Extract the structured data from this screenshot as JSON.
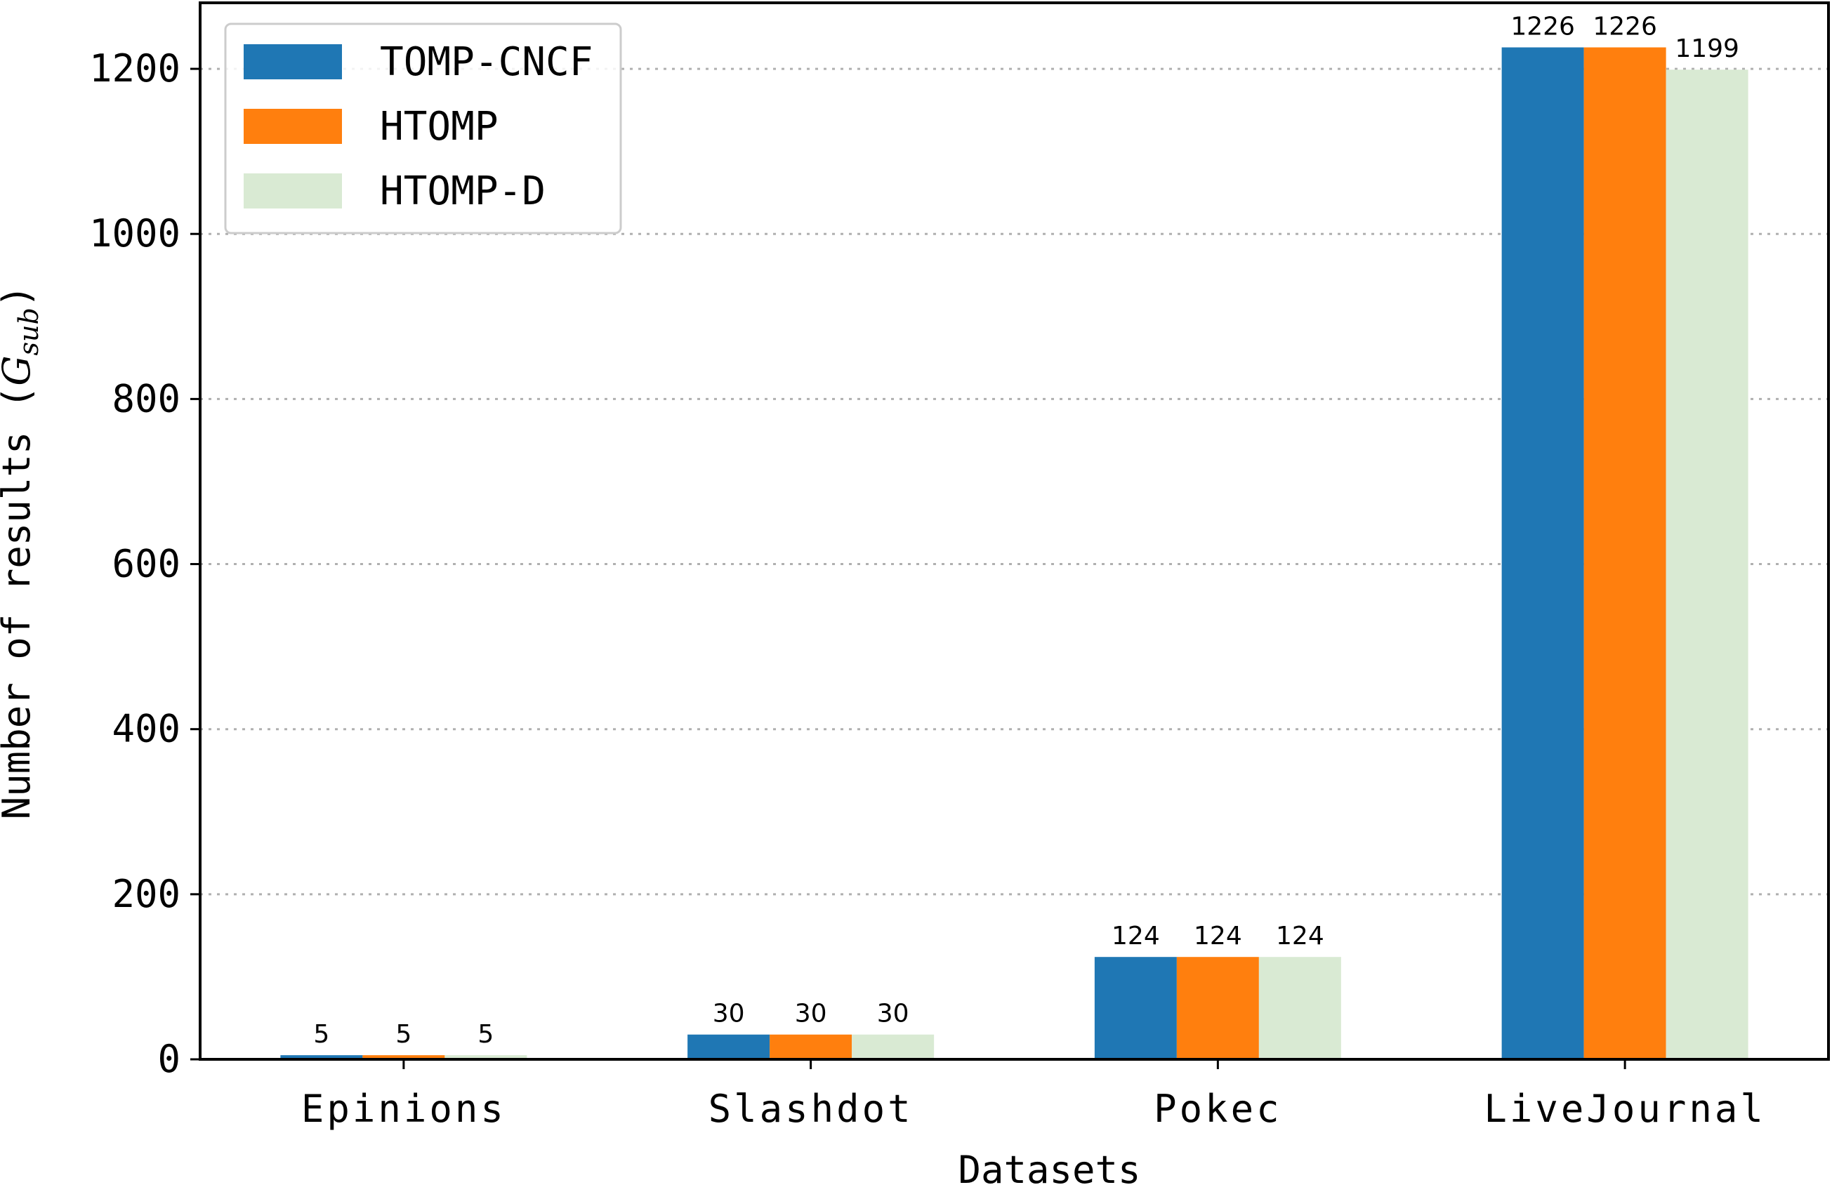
{
  "chart_data": {
    "type": "bar",
    "categories": [
      "Epinions",
      "Slashdot",
      "Pokec",
      "LiveJournal"
    ],
    "series": [
      {
        "name": "TOMP-CNCF",
        "color": "#1f77b4",
        "values": [
          5,
          30,
          124,
          1226
        ]
      },
      {
        "name": "HTOMP",
        "color": "#ff7f0e",
        "values": [
          5,
          30,
          124,
          1226
        ]
      },
      {
        "name": "HTOMP-D",
        "color": "#d9ead3",
        "values": [
          5,
          30,
          124,
          1199
        ]
      }
    ],
    "data_labels": [
      [
        "5",
        "30",
        "124",
        "1226"
      ],
      [
        "5",
        "30",
        "124",
        "1226"
      ],
      [
        "5",
        "30",
        "124",
        "1199"
      ]
    ],
    "yticks": [
      0,
      200,
      400,
      600,
      800,
      1000,
      1200
    ],
    "ylim": [
      0,
      1280
    ],
    "xlabel": "Datasets",
    "ylabel": {
      "prefix": "Number of results (",
      "symbol": "G",
      "subscript": "sub",
      "suffix": ")"
    },
    "grid": "horizontal-dotted",
    "legend_position": "top-left"
  }
}
